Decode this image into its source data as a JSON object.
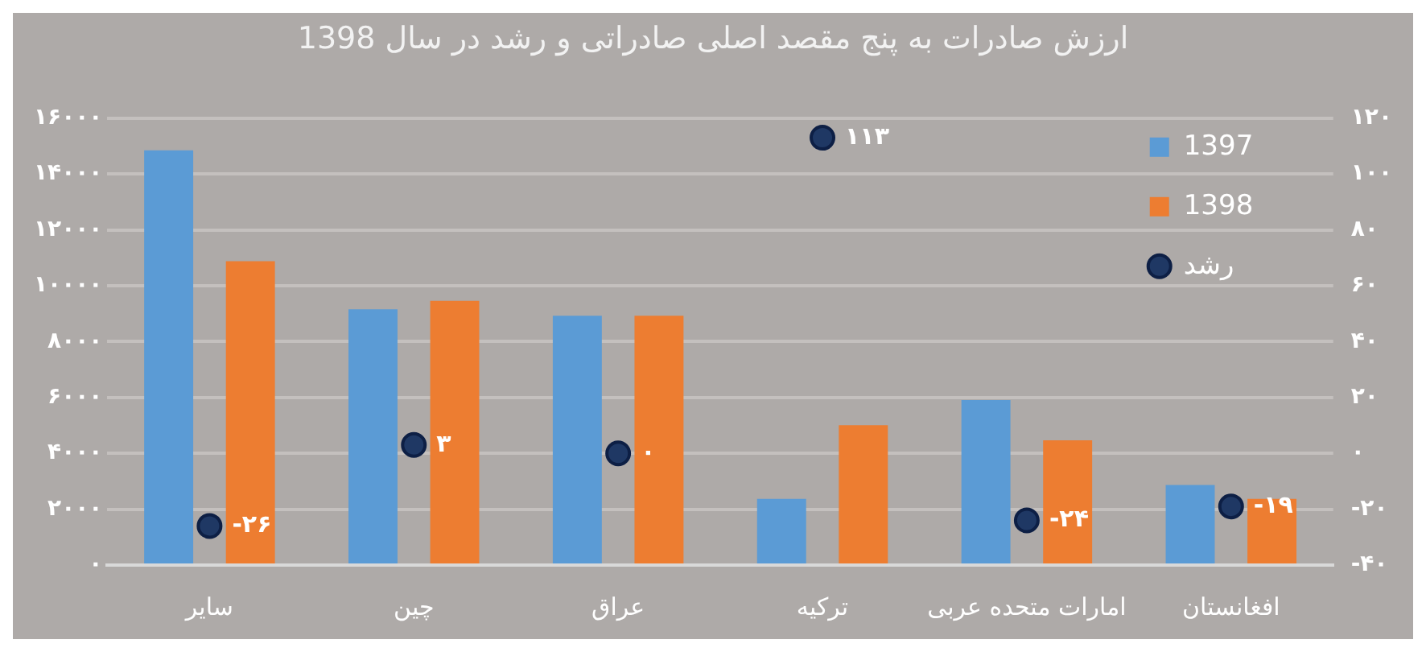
{
  "chart_data": {
    "type": "bar",
    "title": "ارزش صادرات به پنج مقصد اصلی صادراتی و رشد در سال 1398",
    "categories": [
      "سایر",
      "چین",
      "عراق",
      "ترکیه",
      "امارات متحده عربی",
      "افغانستان"
    ],
    "series": [
      {
        "name": "1397",
        "color": "#5b9bd5",
        "values": [
          14850,
          9160,
          8930,
          2370,
          5910,
          2870
        ]
      },
      {
        "name": "1398",
        "color": "#ed7d31",
        "values": [
          10880,
          9460,
          8930,
          5010,
          4470,
          2370
        ]
      },
      {
        "name": "رشد",
        "type": "scatter",
        "axis": "y2",
        "color": "#1f3864",
        "marker": "circle",
        "values": [
          -26,
          3,
          0,
          113,
          -24,
          -19
        ],
        "value_labels": [
          "-۲۶",
          "۳",
          "۰",
          "۱۱۳",
          "-۲۴",
          "-۱۹"
        ]
      }
    ],
    "ylim": [
      0,
      16000
    ],
    "yticks": [
      {
        "value": 0,
        "label": "۰"
      },
      {
        "value": 2000,
        "label": "۲۰۰۰"
      },
      {
        "value": 4000,
        "label": "۴۰۰۰"
      },
      {
        "value": 6000,
        "label": "۶۰۰۰"
      },
      {
        "value": 8000,
        "label": "۸۰۰۰"
      },
      {
        "value": 10000,
        "label": "۱۰۰۰۰"
      },
      {
        "value": 12000,
        "label": "۱۲۰۰۰"
      },
      {
        "value": 14000,
        "label": "۱۴۰۰۰"
      },
      {
        "value": 16000,
        "label": "۱۶۰۰۰"
      }
    ],
    "y2lim": [
      -40,
      120
    ],
    "y2ticks": [
      {
        "value": -40,
        "label": "-۴۰"
      },
      {
        "value": -20,
        "label": "-۲۰"
      },
      {
        "value": 0,
        "label": "۰"
      },
      {
        "value": 20,
        "label": "۲۰"
      },
      {
        "value": 40,
        "label": "۴۰"
      },
      {
        "value": 60,
        "label": "۶۰"
      },
      {
        "value": 80,
        "label": "۸۰"
      },
      {
        "value": 100,
        "label": "۱۰۰"
      },
      {
        "value": 120,
        "label": "۱۲۰"
      }
    ],
    "grid": "y",
    "legend": "top right"
  }
}
